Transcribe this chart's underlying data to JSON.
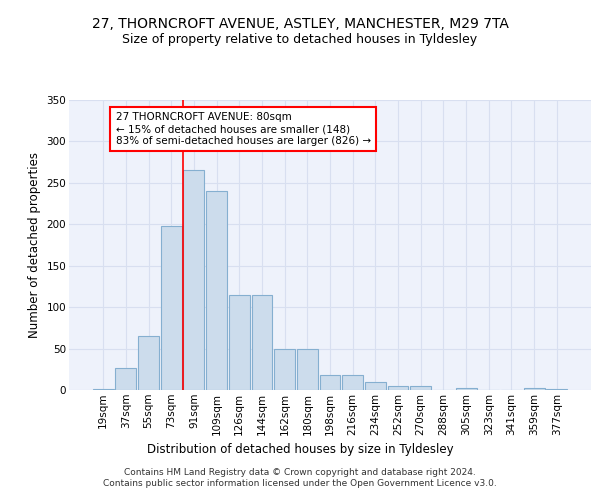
{
  "title1": "27, THORNCROFT AVENUE, ASTLEY, MANCHESTER, M29 7TA",
  "title2": "Size of property relative to detached houses in Tyldesley",
  "xlabel": "Distribution of detached houses by size in Tyldesley",
  "ylabel": "Number of detached properties",
  "categories": [
    "19sqm",
    "37sqm",
    "55sqm",
    "73sqm",
    "91sqm",
    "109sqm",
    "126sqm",
    "144sqm",
    "162sqm",
    "180sqm",
    "198sqm",
    "216sqm",
    "234sqm",
    "252sqm",
    "270sqm",
    "288sqm",
    "305sqm",
    "323sqm",
    "341sqm",
    "359sqm",
    "377sqm"
  ],
  "bar_values": [
    1,
    27,
    65,
    198,
    265,
    240,
    115,
    115,
    50,
    50,
    18,
    18,
    10,
    5,
    5,
    0,
    3,
    0,
    0,
    3,
    1
  ],
  "bar_color": "#ccdcec",
  "bar_edgecolor": "#85afd0",
  "vline_x": 3.5,
  "vline_color": "red",
  "annotation_text": "27 THORNCROFT AVENUE: 80sqm\n← 15% of detached houses are smaller (148)\n83% of semi-detached houses are larger (826) →",
  "annotation_box_color": "white",
  "annotation_box_edgecolor": "red",
  "footer": "Contains HM Land Registry data © Crown copyright and database right 2024.\nContains public sector information licensed under the Open Government Licence v3.0.",
  "ylim": [
    0,
    350
  ],
  "yticks": [
    0,
    50,
    100,
    150,
    200,
    250,
    300,
    350
  ],
  "background_color": "#eef2fb",
  "grid_color": "#d8dff0",
  "title1_fontsize": 10,
  "title2_fontsize": 9,
  "axis_label_fontsize": 8.5,
  "tick_fontsize": 7.5,
  "footer_fontsize": 6.5
}
